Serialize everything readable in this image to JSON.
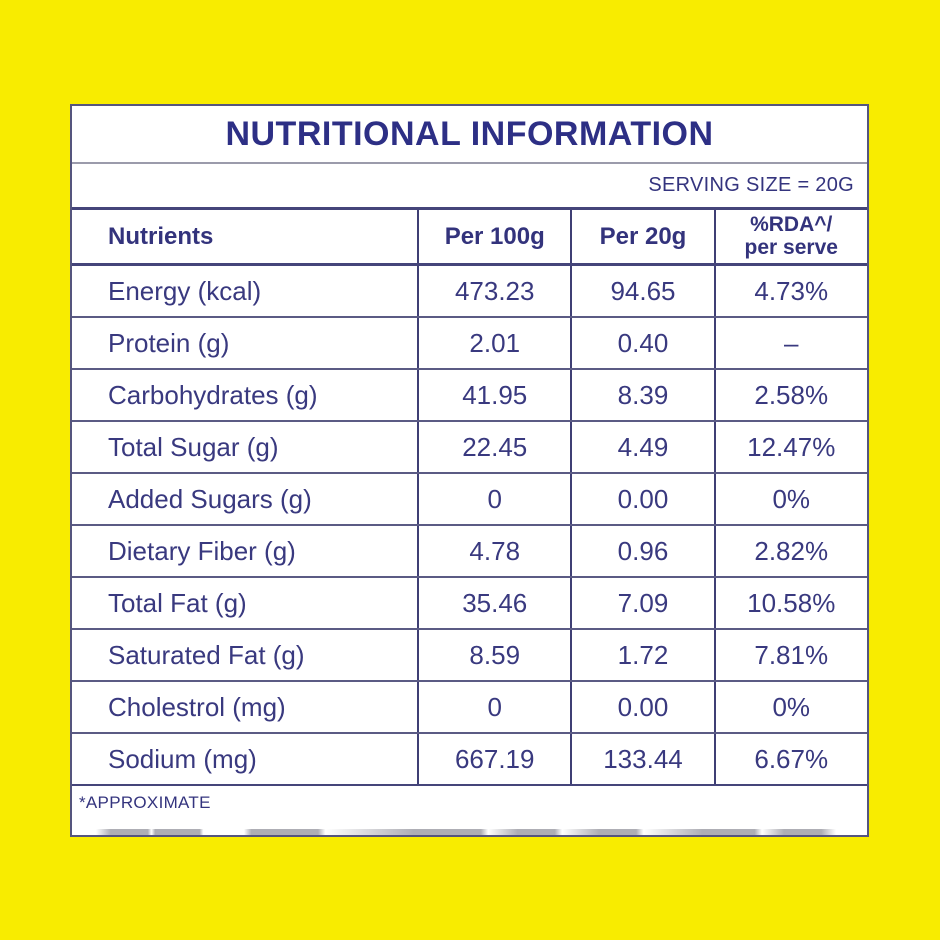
{
  "colors": {
    "background": "#F8EC00",
    "card": "#FFFFFF",
    "border_navy": "#45457A",
    "border_gray": "#9B9BAB",
    "title_text": "#2D2F85",
    "body_text": "#39397F"
  },
  "title": "NUTRITIONAL INFORMATION",
  "serving_size_label": "SERVING SIZE = 20G",
  "table": {
    "columns": {
      "nutrients": "Nutrients",
      "per_100g": "Per 100g",
      "per_20g": "Per 20g",
      "rda_line1": "%RDA^/",
      "rda_line2": "per serve"
    },
    "rows": [
      {
        "nutrient": "Energy (kcal)",
        "per_100g": "473.23",
        "per_20g": "94.65",
        "rda": "4.73%"
      },
      {
        "nutrient": "Protein (g)",
        "per_100g": "2.01",
        "per_20g": "0.40",
        "rda": "–"
      },
      {
        "nutrient": "Carbohydrates (g)",
        "per_100g": "41.95",
        "per_20g": "8.39",
        "rda": "2.58%"
      },
      {
        "nutrient": "Total Sugar (g)",
        "per_100g": "22.45",
        "per_20g": "4.49",
        "rda": "12.47%"
      },
      {
        "nutrient": "Added Sugars (g)",
        "per_100g": "0",
        "per_20g": "0.00",
        "rda": "0%"
      },
      {
        "nutrient": "Dietary Fiber (g)",
        "per_100g": "4.78",
        "per_20g": "0.96",
        "rda": "2.82%"
      },
      {
        "nutrient": "Total Fat (g)",
        "per_100g": "35.46",
        "per_20g": "7.09",
        "rda": "10.58%"
      },
      {
        "nutrient": "Saturated Fat (g)",
        "per_100g": "8.59",
        "per_20g": "1.72",
        "rda": "7.81%"
      },
      {
        "nutrient": "Cholestrol (mg)",
        "per_100g": "0",
        "per_20g": "0.00",
        "rda": "0%"
      },
      {
        "nutrient": "Sodium (mg)",
        "per_100g": "667.19",
        "per_20g": "133.44",
        "rda": "6.67%"
      }
    ]
  },
  "footnote": "*APPROXIMATE"
}
